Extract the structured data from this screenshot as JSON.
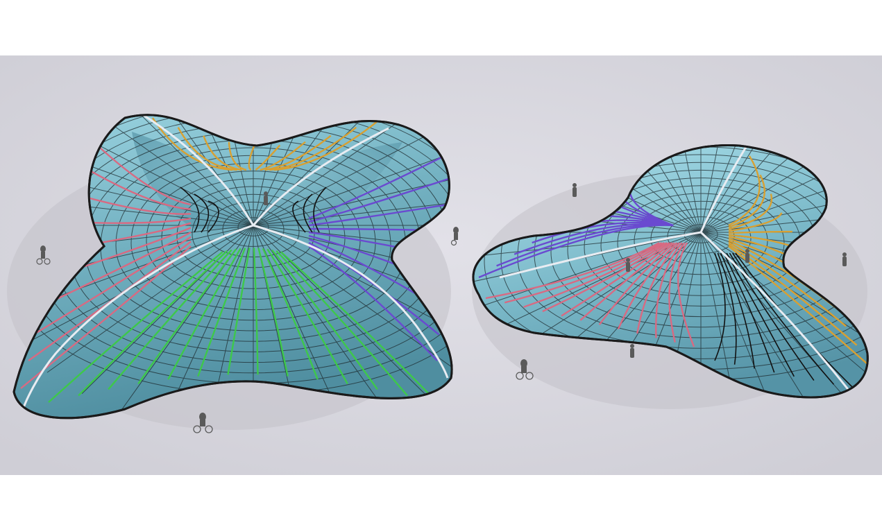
{
  "scene": {
    "colors": {
      "page_background": "#ffffff",
      "ground": "#d8d7de",
      "glass_light": "#8fc8d6",
      "glass_mid": "#6aa6b6",
      "glass_dark": "#3f7e90",
      "edge_outline": "#1a1a1a",
      "mullion": "#1e2a2e",
      "ridge": "#e8ecf2",
      "region_pink": "#d86a82",
      "region_orange": "#d8a032",
      "region_purple": "#6a4ad0",
      "region_green": "#3ec84a",
      "region_black": "#111111",
      "figure": "#555555"
    },
    "objects": [
      {
        "name": "four-lobed-gridshell",
        "lobes": 4
      },
      {
        "name": "three-lobed-gridshell",
        "lobes": 3
      }
    ],
    "figures": [
      "pedestrian",
      "pedestrian",
      "pedestrian",
      "pedestrian",
      "pedestrian",
      "cyclist",
      "cyclist",
      "cyclist"
    ]
  }
}
